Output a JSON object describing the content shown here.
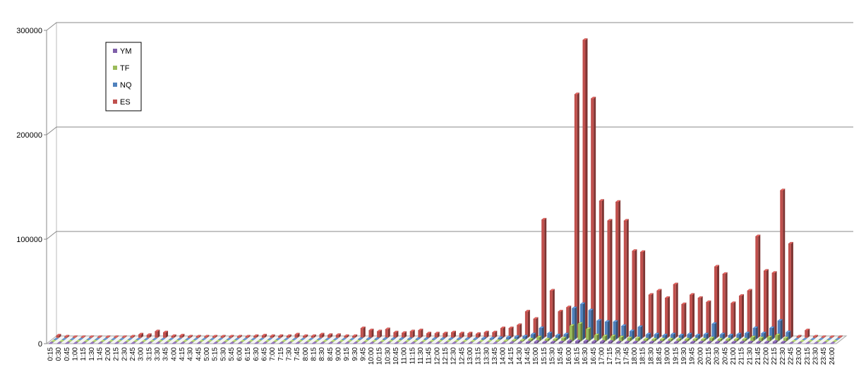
{
  "chart_data": {
    "type": "bar3d",
    "categories": [
      "0:15",
      "0:30",
      "0:45",
      "1:00",
      "1:15",
      "1:30",
      "1:45",
      "2:00",
      "2:15",
      "2:30",
      "2:45",
      "3:00",
      "3:15",
      "3:30",
      "3:45",
      "4:00",
      "4:15",
      "4:30",
      "4:45",
      "5:00",
      "5:15",
      "5:30",
      "5:45",
      "6:00",
      "6:15",
      "6:30",
      "6:45",
      "7:00",
      "7:15",
      "7:30",
      "7:45",
      "8:00",
      "8:15",
      "8:30",
      "8:45",
      "9:00",
      "9:15",
      "9:30",
      "9:45",
      "10:00",
      "10:15",
      "10:30",
      "10:45",
      "11:00",
      "11:15",
      "11:30",
      "11:45",
      "12:00",
      "12:15",
      "12:30",
      "12:45",
      "13:00",
      "13:15",
      "13:30",
      "13:45",
      "14:00",
      "14:15",
      "14:30",
      "14:45",
      "15:00",
      "15:15",
      "15:30",
      "15:45",
      "16:00",
      "16:15",
      "16:30",
      "16:45",
      "17:00",
      "17:15",
      "17:30",
      "17:45",
      "18:00",
      "18:15",
      "18:30",
      "18:45",
      "19:00",
      "19:15",
      "19:30",
      "19:45",
      "20:00",
      "20:15",
      "20:30",
      "20:45",
      "21:00",
      "21:15",
      "21:30",
      "21:45",
      "22:00",
      "22:15",
      "22:30",
      "22:45",
      "23:00",
      "23:15",
      "23:30",
      "23:45",
      "24:00"
    ],
    "series": [
      {
        "name": "YM",
        "color": "#7f5fa9",
        "values": [
          0,
          0,
          0,
          0,
          0,
          0,
          0,
          0,
          0,
          0,
          0,
          0,
          0,
          0,
          0,
          0,
          0,
          0,
          0,
          0,
          0,
          0,
          0,
          0,
          0,
          0,
          0,
          0,
          0,
          0,
          0,
          0,
          0,
          0,
          0,
          0,
          0,
          0,
          0,
          0,
          0,
          0,
          0,
          0,
          0,
          0,
          0,
          0,
          0,
          0,
          0,
          0,
          0,
          0,
          0,
          0,
          500,
          500,
          1000,
          1500,
          1000,
          1000,
          1000,
          2000,
          2000,
          2000,
          1500,
          1500,
          1500,
          1000,
          1000,
          1000,
          1000,
          1000,
          1000,
          1000,
          1000,
          1000,
          1000,
          1000,
          1000,
          1000,
          1000,
          1000,
          1000,
          1000,
          1000,
          1000,
          1500,
          1000,
          0,
          0,
          0,
          0,
          0,
          0
        ]
      },
      {
        "name": "TF",
        "color": "#9bbb59",
        "values": [
          0,
          0,
          0,
          0,
          0,
          0,
          0,
          0,
          0,
          0,
          0,
          0,
          0,
          0,
          0,
          0,
          0,
          0,
          0,
          0,
          0,
          0,
          0,
          0,
          0,
          0,
          0,
          0,
          0,
          0,
          0,
          0,
          0,
          0,
          0,
          0,
          0,
          0,
          0,
          0,
          0,
          0,
          0,
          0,
          0,
          0,
          0,
          0,
          0,
          0,
          0,
          0,
          0,
          0,
          500,
          500,
          1000,
          1000,
          2000,
          4000,
          2000,
          2000,
          3000,
          15000,
          17000,
          12000,
          6000,
          5000,
          5000,
          4000,
          3000,
          3000,
          2000,
          2000,
          2000,
          2000,
          2000,
          2000,
          2000,
          2000,
          3000,
          2000,
          2000,
          2000,
          2000,
          4000,
          3000,
          4000,
          6000,
          3000,
          0,
          0,
          0,
          0,
          0,
          0
        ]
      },
      {
        "name": "NQ",
        "color": "#4f81bd",
        "values": [
          0,
          0,
          0,
          0,
          0,
          0,
          0,
          0,
          0,
          0,
          0,
          0,
          0,
          0,
          0,
          0,
          0,
          0,
          0,
          0,
          0,
          0,
          0,
          0,
          0,
          0,
          0,
          0,
          0,
          0,
          0,
          0,
          0,
          0,
          0,
          0,
          0,
          500,
          500,
          500,
          500,
          500,
          500,
          500,
          500,
          500,
          500,
          500,
          500,
          500,
          500,
          500,
          1000,
          1000,
          1500,
          2000,
          2500,
          3000,
          5000,
          11000,
          6000,
          4000,
          5000,
          30000,
          34000,
          28000,
          18000,
          17000,
          17000,
          13000,
          8000,
          12000,
          5000,
          5000,
          4000,
          5000,
          4000,
          5000,
          4000,
          5000,
          15000,
          5000,
          4000,
          5000,
          6000,
          11000,
          6000,
          11000,
          18000,
          7000,
          0,
          0,
          0,
          0,
          0,
          0
        ]
      },
      {
        "name": "ES",
        "color": "#c0504d",
        "values": [
          2000,
          1000,
          500,
          500,
          500,
          500,
          500,
          500,
          500,
          1000,
          3000,
          2500,
          6000,
          5000,
          1500,
          2000,
          1000,
          1000,
          1000,
          1000,
          1000,
          1000,
          1000,
          1000,
          1500,
          2000,
          1500,
          1500,
          1500,
          3000,
          1500,
          1500,
          3000,
          2500,
          2500,
          1500,
          1500,
          9000,
          7000,
          6000,
          8000,
          5000,
          4500,
          6000,
          7000,
          4000,
          4000,
          4000,
          5000,
          4000,
          4000,
          3500,
          5000,
          5000,
          9000,
          9000,
          12000,
          25000,
          18000,
          113000,
          45000,
          25000,
          29000,
          233000,
          285000,
          229000,
          131000,
          112000,
          130000,
          112000,
          83000,
          82000,
          41000,
          45000,
          38000,
          51000,
          32000,
          41000,
          38000,
          34000,
          68000,
          61000,
          33000,
          40000,
          45000,
          97000,
          64000,
          62000,
          141000,
          90000,
          1000,
          7000,
          1000,
          500,
          500,
          500
        ]
      }
    ],
    "ylim": [
      0,
      300000
    ],
    "yticks": [
      0,
      100000,
      200000,
      300000
    ],
    "grid": true
  }
}
